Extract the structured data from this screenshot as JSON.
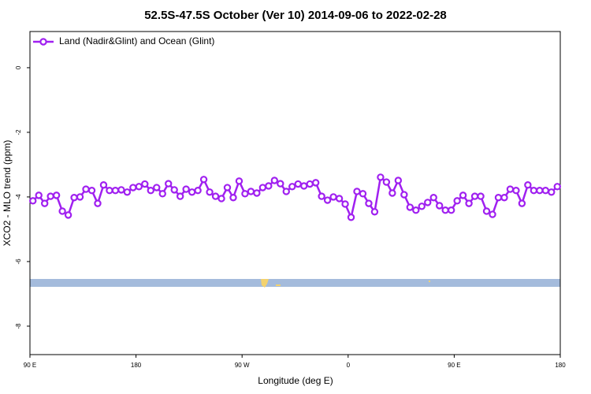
{
  "chart_data": {
    "type": "line",
    "title": "52.5S-47.5S October (Ver 10)   2014-09-06 to 2022-02-28",
    "xlabel": "Longitude (deg E)",
    "ylabel": "XCO2 - MLO trend (ppm)",
    "xlim": [
      90,
      540
    ],
    "xticks": [
      {
        "value": 90,
        "label": "90 E"
      },
      {
        "value": 180,
        "label": "180"
      },
      {
        "value": 270,
        "label": "90 W"
      },
      {
        "value": 360,
        "label": "0"
      },
      {
        "value": 450,
        "label": "90 E"
      },
      {
        "value": 540,
        "label": "180"
      }
    ],
    "ylim": [
      -8.88,
      1.12
    ],
    "yticks": [
      0,
      -2,
      -4,
      -6,
      -8
    ],
    "legend": "upper left",
    "x": [
      92.5,
      97.5,
      102.5,
      107.5,
      112.5,
      117.5,
      122.5,
      127.5,
      132.5,
      137.5,
      142.5,
      147.5,
      152.5,
      157.5,
      162.5,
      167.5,
      172.5,
      177.5,
      182.5,
      187.5,
      192.5,
      197.5,
      202.5,
      207.5,
      212.5,
      217.5,
      222.5,
      227.5,
      232.5,
      237.5,
      242.5,
      247.5,
      252.5,
      257.5,
      262.5,
      267.5,
      272.5,
      277.5,
      282.5,
      287.5,
      292.5,
      297.5,
      302.5,
      307.5,
      312.5,
      317.5,
      322.5,
      327.5,
      332.5,
      337.5,
      342.5,
      347.5,
      352.5,
      357.5,
      362.5,
      367.5,
      372.5,
      377.5,
      382.5,
      387.5,
      392.5,
      397.5,
      402.5,
      407.5,
      412.5,
      417.5,
      422.5,
      427.5,
      432.5,
      437.5,
      442.5,
      447.5,
      452.5,
      457.5,
      462.5,
      467.5,
      472.5,
      477.5,
      482.5,
      487.5,
      492.5,
      497.5,
      502.5,
      507.5,
      512.5,
      517.5,
      522.5,
      527.5,
      532.5,
      537.5
    ],
    "series": [
      {
        "name": "Land (Nadir&Glint) and Ocean (Glint)",
        "color": "#a020f0",
        "values": [
          -4.12,
          -3.95,
          -4.2,
          -3.98,
          -3.95,
          -4.44,
          -4.56,
          -4.02,
          -4.0,
          -3.76,
          -3.8,
          -4.2,
          -3.63,
          -3.8,
          -3.8,
          -3.78,
          -3.85,
          -3.71,
          -3.68,
          -3.6,
          -3.8,
          -3.71,
          -3.9,
          -3.59,
          -3.78,
          -3.98,
          -3.76,
          -3.85,
          -3.8,
          -3.46,
          -3.85,
          -3.98,
          -4.05,
          -3.71,
          -4.02,
          -3.51,
          -3.9,
          -3.83,
          -3.88,
          -3.71,
          -3.66,
          -3.49,
          -3.59,
          -3.83,
          -3.68,
          -3.6,
          -3.66,
          -3.6,
          -3.56,
          -3.98,
          -4.1,
          -4.0,
          -4.05,
          -4.22,
          -4.63,
          -3.83,
          -3.9,
          -4.2,
          -4.46,
          -3.39,
          -3.54,
          -3.88,
          -3.49,
          -3.93,
          -4.32,
          -4.41,
          -4.29,
          -4.17,
          -4.02,
          -4.27,
          -4.41,
          -4.41,
          -4.12,
          -3.95,
          -4.2,
          -3.98,
          -3.98,
          -4.44,
          -4.54,
          -4.02,
          -4.02,
          -3.76,
          -3.8,
          -4.2,
          -3.63,
          -3.8,
          -3.8,
          -3.8,
          -3.85,
          -3.68
        ]
      }
    ]
  }
}
